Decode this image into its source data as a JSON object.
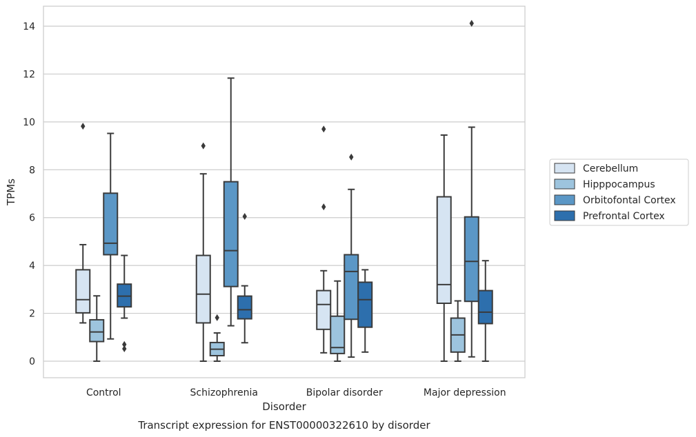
{
  "chart_data": {
    "type": "box",
    "xlabel": "Disorder",
    "ylabel": "TPMs",
    "caption": "Transcript expression for ENST00000322610 by disorder",
    "ylim": [
      -0.7,
      14.8
    ],
    "yticks": [
      0,
      2,
      4,
      6,
      8,
      10,
      12,
      14
    ],
    "grid": "horizontal",
    "legend_position": "right",
    "categories": [
      "Control",
      "Schizophrenia",
      "Bipolar disorder",
      "Major depression"
    ],
    "series": [
      {
        "name": "Cerebellum",
        "color": "#d6e4f2",
        "boxes": [
          {
            "whisker_low": 1.6,
            "q1": 2.02,
            "median": 2.57,
            "q3": 3.82,
            "whisker_high": 4.87,
            "outliers": [
              9.82
            ]
          },
          {
            "whisker_low": 0.0,
            "q1": 1.6,
            "median": 2.8,
            "q3": 4.42,
            "whisker_high": 7.83,
            "outliers": [
              9.0
            ]
          },
          {
            "whisker_low": 0.35,
            "q1": 1.33,
            "median": 2.37,
            "q3": 2.95,
            "whisker_high": 3.78,
            "outliers": [
              6.45,
              9.7
            ]
          },
          {
            "whisker_low": 0.0,
            "q1": 2.42,
            "median": 3.2,
            "q3": 6.87,
            "whisker_high": 9.45,
            "outliers": []
          }
        ]
      },
      {
        "name": "Hipppocampus",
        "color": "#9dc4de",
        "boxes": [
          {
            "whisker_low": 0.0,
            "q1": 0.82,
            "median": 1.22,
            "q3": 1.73,
            "whisker_high": 2.73,
            "outliers": []
          },
          {
            "whisker_low": 0.0,
            "q1": 0.23,
            "median": 0.5,
            "q3": 0.78,
            "whisker_high": 1.18,
            "outliers": [
              1.82
            ]
          },
          {
            "whisker_low": 0.0,
            "q1": 0.32,
            "median": 0.57,
            "q3": 1.88,
            "whisker_high": 3.35,
            "outliers": []
          },
          {
            "whisker_low": 0.0,
            "q1": 0.38,
            "median": 1.1,
            "q3": 1.8,
            "whisker_high": 2.52,
            "outliers": []
          }
        ]
      },
      {
        "name": "Orbitofontal Cortex",
        "color": "#5b97c6",
        "boxes": [
          {
            "whisker_low": 0.93,
            "q1": 4.45,
            "median": 4.93,
            "q3": 7.02,
            "whisker_high": 9.52,
            "outliers": []
          },
          {
            "whisker_low": 1.48,
            "q1": 3.12,
            "median": 4.62,
            "q3": 7.5,
            "whisker_high": 11.83,
            "outliers": []
          },
          {
            "whisker_low": 0.17,
            "q1": 1.75,
            "median": 3.75,
            "q3": 4.45,
            "whisker_high": 7.18,
            "outliers": [
              8.53
            ]
          },
          {
            "whisker_low": 0.18,
            "q1": 2.5,
            "median": 4.17,
            "q3": 6.03,
            "whisker_high": 9.78,
            "outliers": [
              14.12
            ]
          }
        ]
      },
      {
        "name": "Prefrontal Cortex",
        "color": "#2d6fad",
        "boxes": [
          {
            "whisker_low": 1.8,
            "q1": 2.27,
            "median": 2.72,
            "q3": 3.22,
            "whisker_high": 4.42,
            "outliers": [
              0.52,
              0.7
            ]
          },
          {
            "whisker_low": 0.77,
            "q1": 1.77,
            "median": 2.15,
            "q3": 2.72,
            "whisker_high": 3.15,
            "outliers": [
              6.05
            ]
          },
          {
            "whisker_low": 0.38,
            "q1": 1.42,
            "median": 2.57,
            "q3": 3.3,
            "whisker_high": 3.82,
            "outliers": []
          },
          {
            "whisker_low": 0.0,
            "q1": 1.57,
            "median": 2.05,
            "q3": 2.95,
            "whisker_high": 4.2,
            "outliers": []
          }
        ]
      }
    ]
  }
}
